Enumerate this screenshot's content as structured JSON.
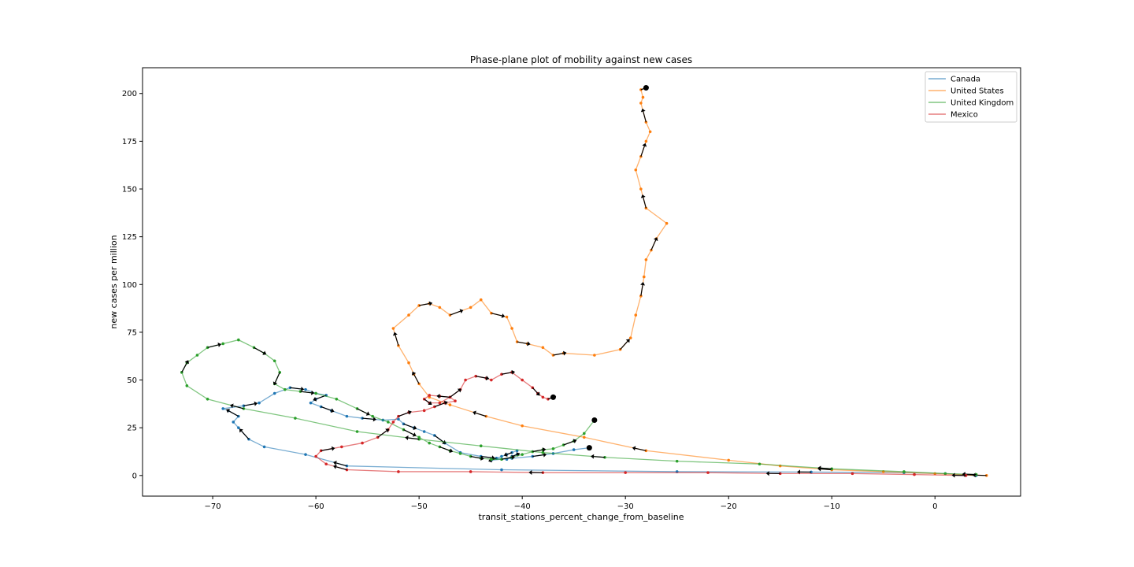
{
  "chart_data": {
    "type": "line",
    "title": "Phase-plane plot of mobility against new cases",
    "xlabel": "transit_stations_percent_change_from_baseline",
    "ylabel": "new cases per million",
    "xlim": [
      -76.8,
      8.3
    ],
    "ylim": [
      -10.8,
      213.5
    ],
    "xticks": [
      -70,
      -60,
      -50,
      -40,
      -30,
      -20,
      -10,
      0
    ],
    "xtick_labels": [
      "−70",
      "−60",
      "−50",
      "−40",
      "−30",
      "−20",
      "−10",
      "0"
    ],
    "yticks": [
      0,
      25,
      50,
      75,
      100,
      125,
      150,
      175,
      200
    ],
    "ytick_labels": [
      "0",
      "25",
      "50",
      "75",
      "100",
      "125",
      "150",
      "175",
      "200"
    ],
    "grid": false,
    "legend_position": "upper right",
    "series": [
      {
        "name": "Canada",
        "color": "#1f77b4",
        "x": [
          4,
          1,
          -3,
          -12,
          -25,
          -42,
          -57,
          -61,
          -65,
          -66.5,
          -67.5,
          -68,
          -67.5,
          -68.5,
          -69,
          -67,
          -65.5,
          -64,
          -62.5,
          -61,
          -60,
          -59,
          -60,
          -60.5,
          -59.5,
          -58.5,
          -57,
          -55.5,
          -53.5,
          -52,
          -51.5,
          -50.5,
          -49.5,
          -48.5,
          -47.5,
          -46,
          -44,
          -42.5,
          -41.5,
          -41,
          -40.5,
          -40.5,
          -41,
          -41.5,
          -42,
          -42.5,
          -43,
          -41,
          -39,
          -37,
          -35,
          -33.5
        ],
        "y": [
          0,
          1,
          1.5,
          1.8,
          2,
          3,
          5,
          11,
          15,
          19,
          25,
          28,
          31,
          34,
          35,
          36.5,
          38,
          43,
          46,
          45,
          43,
          42,
          40,
          38,
          36,
          34,
          31,
          30,
          29,
          29.5,
          27,
          25,
          23,
          21,
          17,
          12,
          10,
          9,
          8.5,
          10,
          11,
          13,
          12,
          11,
          10,
          9,
          8,
          9,
          10,
          11.5,
          13.5,
          14.5
        ]
      },
      {
        "name": "United States",
        "color": "#ff7f0e",
        "x": [
          5,
          0,
          -5,
          -10,
          -15,
          -20,
          -28,
          -34,
          -40,
          -43.5,
          -47,
          -49,
          -50,
          -50.5,
          -51,
          -52,
          -52.5,
          -51,
          -50,
          -49,
          -48,
          -47,
          -45,
          -44,
          -43,
          -41.5,
          -41,
          -40.5,
          -39.5,
          -38,
          -37,
          -36,
          -33,
          -30.5,
          -29.5,
          -29,
          -28.5,
          -28.2,
          -28,
          -27.5,
          -27,
          -26,
          -28,
          -28.5,
          -29,
          -28.5,
          -28,
          -27.6,
          -28,
          -28.5,
          -28.3,
          -28.5,
          -28
        ],
        "y": [
          0,
          1,
          2,
          3,
          5,
          8,
          13,
          20,
          26,
          31,
          37,
          41,
          48,
          53,
          59,
          68,
          77,
          84,
          89,
          90,
          88,
          84,
          88,
          92,
          85,
          83,
          77,
          70,
          69,
          67,
          63,
          64,
          63,
          66,
          72,
          84,
          94,
          104,
          113,
          118,
          124,
          132,
          140,
          150,
          160,
          167,
          175,
          180,
          185,
          195,
          198,
          202,
          203
        ]
      },
      {
        "name": "United Kingdom",
        "color": "#2ca02c",
        "x": [
          4,
          1,
          -3,
          -10,
          -17,
          -25,
          -32,
          -38,
          -44,
          -50,
          -56,
          -62,
          -67,
          -70.5,
          -72.5,
          -73,
          -72.5,
          -71.5,
          -70.5,
          -69,
          -67.5,
          -66,
          -65,
          -64,
          -63.5,
          -64,
          -63,
          -61.5,
          -60,
          -58,
          -56,
          -54.5,
          -53,
          -51.5,
          -50,
          -49,
          -48,
          -47,
          -46,
          -45,
          -44,
          -43,
          -42,
          -41,
          -40,
          -39,
          -38,
          -37,
          -36,
          -35,
          -34,
          -33
        ],
        "y": [
          0.5,
          1,
          2,
          3.5,
          6,
          7.5,
          9.5,
          12,
          15.5,
          19,
          23,
          30,
          35,
          40,
          47,
          54,
          59,
          63,
          67,
          69,
          71,
          67,
          64,
          60,
          54,
          48,
          45,
          44,
          43,
          40,
          35,
          31,
          28,
          24,
          20,
          17,
          15,
          13,
          11.5,
          10,
          9,
          8.5,
          8.5,
          9.5,
          11,
          12.5,
          13.5,
          14,
          16,
          18,
          22,
          29
        ]
      },
      {
        "name": "Mexico",
        "color": "#d62728",
        "x": [
          3,
          -2,
          -8,
          -15,
          -22,
          -30,
          -38,
          -45,
          -52,
          -57,
          -59,
          -60,
          -59.5,
          -57.5,
          -55.5,
          -54,
          -53,
          -52.5,
          -52,
          -51,
          -49.5,
          -48.5,
          -47.5,
          -46.5,
          -47,
          -48,
          -49,
          -49.5,
          -49,
          -48,
          -47,
          -46,
          -45.5,
          -44.5,
          -43.5,
          -43,
          -42,
          -41,
          -40,
          -39,
          -38.5,
          -38,
          -37.5,
          -37
        ],
        "y": [
          0,
          0.5,
          1,
          1,
          1.5,
          1.5,
          1.5,
          2,
          2,
          3,
          6,
          10,
          13,
          15,
          17,
          20,
          24,
          28,
          31,
          33,
          34,
          36,
          38,
          39,
          41,
          41.5,
          42,
          40,
          38,
          38,
          41,
          45,
          50,
          52,
          51,
          50,
          53,
          54,
          50,
          46,
          43,
          41,
          40,
          41
        ]
      }
    ]
  }
}
